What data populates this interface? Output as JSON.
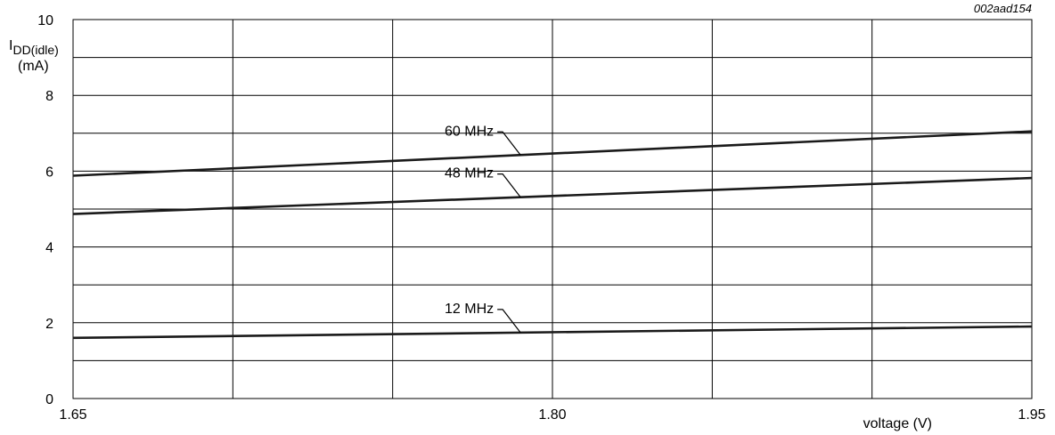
{
  "figure_code": "002aad154",
  "chart_data": {
    "type": "line",
    "ylabel_main": "I",
    "ylabel_sub": "DD(idle)",
    "ylabel_unit": "(mA)",
    "xlabel": "voltage (V)",
    "xlim": [
      1.65,
      1.95
    ],
    "ylim": [
      0,
      10
    ],
    "x_ticks": [
      1.65,
      1.8,
      1.95
    ],
    "x_tick_labels": [
      "1.65",
      "1.80",
      "1.95"
    ],
    "y_ticks": [
      0,
      2,
      4,
      6,
      8,
      10
    ],
    "y_tick_labels": [
      "0",
      "2",
      "4",
      "6",
      "8",
      "10"
    ],
    "grid": true,
    "series": [
      {
        "name": "60 MHz",
        "x": [
          1.65,
          1.95
        ],
        "y": [
          5.88,
          7.05
        ]
      },
      {
        "name": "48 MHz",
        "x": [
          1.65,
          1.95
        ],
        "y": [
          4.87,
          5.82
        ]
      },
      {
        "name": "12 MHz",
        "x": [
          1.65,
          1.95
        ],
        "y": [
          1.6,
          1.9
        ]
      }
    ]
  }
}
